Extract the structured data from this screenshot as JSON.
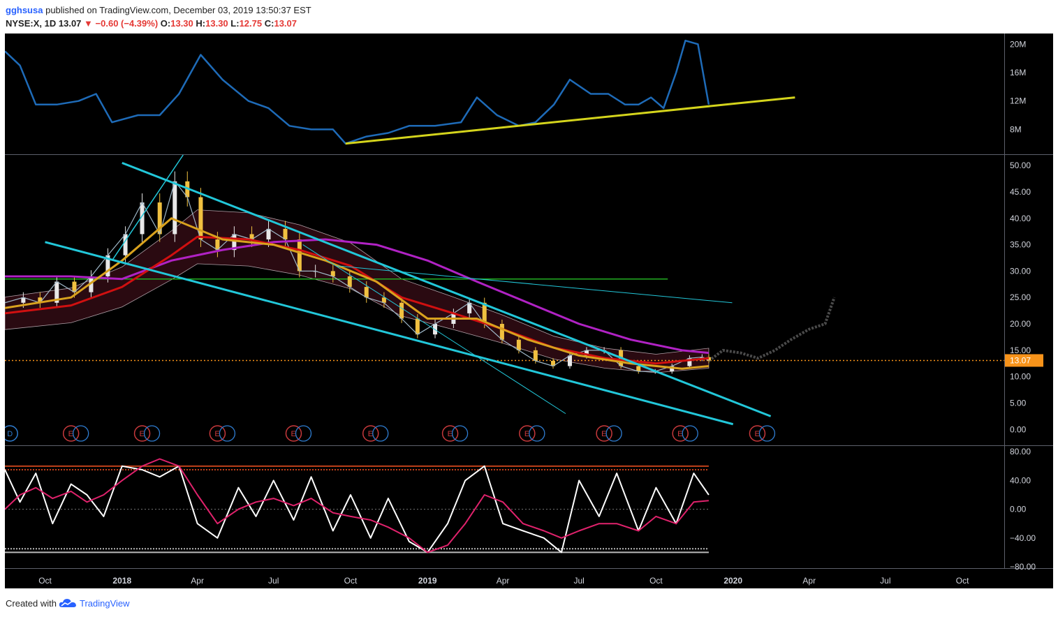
{
  "header": {
    "username": "gghsusa",
    "published_text": "published on TradingView.com, December 03, 2019 13:50:37 EST",
    "symbol_interval": "NYSE:X, 1D",
    "last": "13.07",
    "change": "▼ −0.60 (−4.39%)",
    "open_label": "O:",
    "open": "13.30",
    "high_label": "H:",
    "high": "13.30",
    "low_label": "L:",
    "low": "12.75",
    "close_label": "C:",
    "close": "13.07"
  },
  "footer": {
    "created_with": "Created with",
    "brand": "TradingView",
    "logo_icon": "tradingview-cloud-icon"
  },
  "colors": {
    "background": "#000000",
    "axis_text": "#d1d4dc",
    "volume_line": "#1e6bb8",
    "trendline_yellow": "#d4d41c",
    "channel_cyan": "#22c7d9",
    "ma_magenta": "#b022c4",
    "ma_red": "#d01010",
    "ma_orange": "#d9a21e",
    "horizontal_green": "#22b022",
    "price_label": "#f7931a",
    "k_line": "#ffffff",
    "d_line": "#e0226c",
    "overbought": "#c0401a",
    "oversold": "#bbbbbb"
  },
  "chart_data": [
    {
      "type": "line",
      "name": "volume",
      "x": [
        "2017-08-14",
        "2017-09-01",
        "2017-09-20",
        "2017-10-15",
        "2017-11-10",
        "2017-12-01",
        "2017-12-20",
        "2018-01-20",
        "2018-02-15",
        "2018-03-10",
        "2018-04-05",
        "2018-05-01",
        "2018-06-01",
        "2018-06-25",
        "2018-07-20",
        "2018-08-15",
        "2018-09-10",
        "2018-09-25",
        "2018-10-20",
        "2018-11-15",
        "2018-12-10",
        "2019-01-10",
        "2019-02-10",
        "2019-03-01",
        "2019-03-25",
        "2019-04-20",
        "2019-05-10",
        "2019-06-01",
        "2019-06-20",
        "2019-07-15",
        "2019-08-05",
        "2019-08-25",
        "2019-09-10",
        "2019-09-25",
        "2019-10-10",
        "2019-10-25",
        "2019-11-05",
        "2019-11-20",
        "2019-12-03"
      ],
      "values": [
        19,
        17,
        11.5,
        11.5,
        12,
        13,
        9,
        10,
        10,
        13,
        18.5,
        15,
        12,
        11,
        8.5,
        8,
        8,
        6,
        7,
        7.5,
        8.5,
        8.5,
        9,
        12.5,
        10,
        8.5,
        9,
        11.5,
        15,
        13,
        13,
        11.5,
        11.5,
        12.5,
        11,
        16,
        20.5,
        20,
        11.5
      ],
      "ylim": [
        4.5,
        21.5
      ],
      "ticks": [
        "20M",
        "16M",
        "12M",
        "8M"
      ],
      "tick_values": [
        20,
        16,
        12,
        8
      ],
      "trendline": {
        "x1": "2018-09-25",
        "y1": 6,
        "x2": "2020-03-15",
        "y2": 12.5
      }
    },
    {
      "type": "candlestick",
      "name": "NYSE:X, 1D",
      "x": [
        "2017-08-14",
        "2017-09-05",
        "2017-09-25",
        "2017-10-15",
        "2017-11-05",
        "2017-11-25",
        "2017-12-15",
        "2018-01-05",
        "2018-01-25",
        "2018-02-15",
        "2018-03-05",
        "2018-03-20",
        "2018-04-05",
        "2018-04-25",
        "2018-05-15",
        "2018-06-05",
        "2018-06-25",
        "2018-07-15",
        "2018-08-01",
        "2018-08-20",
        "2018-09-10",
        "2018-09-30",
        "2018-10-20",
        "2018-11-10",
        "2018-12-01",
        "2018-12-20",
        "2019-01-10",
        "2019-02-01",
        "2019-02-20",
        "2019-03-10",
        "2019-03-31",
        "2019-04-20",
        "2019-05-10",
        "2019-05-31",
        "2019-06-20",
        "2019-07-10",
        "2019-07-31",
        "2019-08-20",
        "2019-09-10",
        "2019-09-30",
        "2019-10-20",
        "2019-11-10",
        "2019-11-25",
        "2019-12-03"
      ],
      "close": [
        24,
        25,
        24,
        28,
        26,
        29,
        33,
        37,
        43,
        37,
        47,
        44,
        36,
        34,
        37,
        36,
        38,
        36,
        30,
        30,
        29,
        27,
        25,
        24,
        21,
        18,
        20,
        22,
        24,
        20,
        17,
        15,
        13,
        12,
        14,
        15,
        15,
        12,
        11,
        11,
        12,
        13.5,
        13.7,
        13.07
      ],
      "ghost_projection": {
        "x": [
          "2019-12-03",
          "2019-12-20",
          "2020-01-10",
          "2020-01-31",
          "2020-02-20",
          "2020-03-10",
          "2020-04-01",
          "2020-04-20",
          "2020-05-01"
        ],
        "values": [
          13,
          15,
          14.5,
          13.5,
          15,
          17,
          19,
          20,
          25
        ]
      },
      "moving_averages": [
        {
          "color": "#b022c4",
          "x": [
            "2017-08-14",
            "2017-11-01",
            "2018-01-01",
            "2018-03-01",
            "2018-05-01",
            "2018-07-01",
            "2018-09-01",
            "2018-11-01",
            "2019-01-01",
            "2019-03-01",
            "2019-05-01",
            "2019-07-01",
            "2019-09-01",
            "2019-11-01",
            "2019-12-03"
          ],
          "values": [
            29,
            29,
            28.5,
            32,
            34,
            35.5,
            36,
            35,
            32,
            28,
            24,
            20,
            17,
            15,
            14.5
          ]
        },
        {
          "color": "#d01010",
          "x": [
            "2017-08-14",
            "2017-11-01",
            "2018-01-01",
            "2018-03-01",
            "2018-04-01",
            "2018-06-01",
            "2018-08-01",
            "2018-10-01",
            "2018-12-01",
            "2019-02-01",
            "2019-04-01",
            "2019-06-01",
            "2019-08-01",
            "2019-10-01",
            "2019-12-03"
          ],
          "values": [
            22,
            23.5,
            27,
            33,
            36.5,
            36,
            34,
            31,
            25,
            22,
            19,
            15.5,
            13.5,
            12.5,
            13.5
          ]
        },
        {
          "color": "#d9a21e",
          "x": [
            "2017-08-14",
            "2017-11-01",
            "2018-01-01",
            "2018-03-01",
            "2018-05-01",
            "2018-07-01",
            "2018-09-01",
            "2018-11-01",
            "2019-01-01",
            "2019-03-01",
            "2019-05-01",
            "2019-07-01",
            "2019-09-01",
            "2019-11-01",
            "2019-12-03"
          ],
          "values": [
            23,
            25,
            32,
            40,
            36,
            35,
            32,
            28,
            21,
            21,
            17,
            14,
            12.5,
            11.5,
            12
          ]
        }
      ],
      "horizontal_lines": [
        {
          "color": "#22b022",
          "y": 28.5,
          "x1": "2017-08-14",
          "x2": "2019-10-15"
        },
        {
          "color": "#f7931a",
          "y": 13.07,
          "dashed": true
        }
      ],
      "trendlines": [
        {
          "color": "#22c7d9",
          "x1": "2018-01-01",
          "y1": 50.5,
          "x2": "2020-02-15",
          "y2": 2.5,
          "width": 3
        },
        {
          "color": "#22c7d9",
          "x1": "2017-10-01",
          "y1": 35.5,
          "x2": "2020-01-01",
          "y2": 1,
          "width": 3
        },
        {
          "color": "#22c7d9",
          "x1": "2017-12-20",
          "y1": 32,
          "x2": "2018-03-15",
          "y2": 52,
          "width": 1.5
        },
        {
          "color": "#22c7d9",
          "x1": "2018-08-05",
          "y1": 35,
          "x2": "2019-06-15",
          "y2": 3,
          "width": 1
        },
        {
          "color": "#22c7d9",
          "x1": "2018-09-15",
          "y1": 31,
          "x2": "2019-12-31",
          "y2": 24,
          "width": 1
        }
      ],
      "ylim": [
        -3,
        52
      ],
      "ticks": [
        "50.00",
        "45.00",
        "40.00",
        "35.00",
        "30.00",
        "25.00",
        "20.00",
        "15.00",
        "10.00",
        "5.00",
        "0.00"
      ],
      "tick_values": [
        50,
        45,
        40,
        35,
        30,
        25,
        20,
        15,
        10,
        5,
        0
      ],
      "price_label": "13.07",
      "events": [
        {
          "x": "2017-08-20",
          "label": "D"
        },
        {
          "x": "2017-11-01",
          "label": "E"
        },
        {
          "x": "2018-01-25",
          "label": "E"
        },
        {
          "x": "2018-04-25",
          "label": "E"
        },
        {
          "x": "2018-07-25",
          "label": "E"
        },
        {
          "x": "2018-10-25",
          "label": "E"
        },
        {
          "x": "2019-01-28",
          "label": "E"
        },
        {
          "x": "2019-04-30",
          "label": "E"
        },
        {
          "x": "2019-07-31",
          "label": "E"
        },
        {
          "x": "2019-10-30",
          "label": "E"
        },
        {
          "x": "2020-01-30",
          "label": "E"
        }
      ]
    },
    {
      "type": "line",
      "name": "oscillator",
      "x": [
        "2017-08-14",
        "2017-09-01",
        "2017-09-20",
        "2017-10-10",
        "2017-11-01",
        "2017-11-20",
        "2017-12-10",
        "2018-01-01",
        "2018-01-25",
        "2018-02-15",
        "2018-03-10",
        "2018-04-01",
        "2018-04-25",
        "2018-05-20",
        "2018-06-10",
        "2018-07-01",
        "2018-07-25",
        "2018-08-15",
        "2018-09-10",
        "2018-10-01",
        "2018-10-25",
        "2018-11-15",
        "2018-12-10",
        "2019-01-01",
        "2019-01-25",
        "2019-02-15",
        "2019-03-10",
        "2019-04-01",
        "2019-04-25",
        "2019-05-20",
        "2019-06-10",
        "2019-07-01",
        "2019-07-25",
        "2019-08-15",
        "2019-09-10",
        "2019-10-01",
        "2019-10-25",
        "2019-11-15",
        "2019-12-03"
      ],
      "series": [
        {
          "color": "#ffffff",
          "values": [
            55,
            10,
            50,
            -20,
            35,
            20,
            -10,
            60,
            55,
            45,
            60,
            -20,
            -40,
            30,
            -10,
            40,
            -15,
            45,
            -30,
            20,
            -40,
            15,
            -45,
            -60,
            -20,
            40,
            60,
            -20,
            -30,
            -40,
            -60,
            40,
            -10,
            50,
            -30,
            30,
            -20,
            50,
            20
          ]
        },
        {
          "color": "#e0226c",
          "values": [
            0,
            20,
            30,
            15,
            25,
            10,
            20,
            40,
            60,
            70,
            60,
            20,
            -20,
            0,
            10,
            15,
            5,
            15,
            -5,
            -10,
            -15,
            -25,
            -40,
            -60,
            -50,
            -20,
            20,
            10,
            -20,
            -30,
            -40,
            -30,
            -20,
            -20,
            -30,
            -10,
            -20,
            10,
            12
          ]
        }
      ],
      "overbought": [
        60,
        55
      ],
      "oversold": [
        -55,
        -60
      ],
      "ylim": [
        -82,
        88
      ],
      "ticks": [
        "80.00",
        "40.00",
        "0.00",
        "−40.00",
        "−80.00"
      ],
      "tick_values": [
        80,
        40,
        0,
        -40,
        -80
      ]
    }
  ],
  "time_axis": {
    "labels": [
      "Oct",
      "2018",
      "Apr",
      "Jul",
      "Oct",
      "2019",
      "Apr",
      "Jul",
      "Oct",
      "2020",
      "Apr",
      "Jul",
      "Oct"
    ],
    "dates": [
      "2017-10-01",
      "2018-01-01",
      "2018-04-01",
      "2018-07-01",
      "2018-10-01",
      "2019-01-01",
      "2019-04-01",
      "2019-07-01",
      "2019-10-01",
      "2020-01-01",
      "2020-04-01",
      "2020-07-01",
      "2020-10-01"
    ],
    "bold": [
      false,
      true,
      false,
      false,
      false,
      true,
      false,
      false,
      false,
      true,
      false,
      false,
      false
    ]
  }
}
